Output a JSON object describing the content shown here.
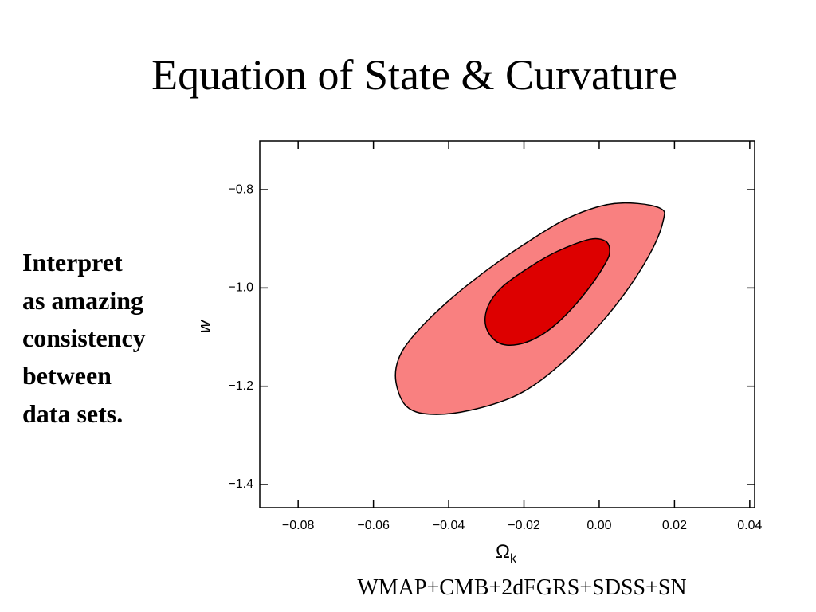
{
  "title": "Equation of State & Curvature",
  "note": [
    "Interpret",
    "as amazing",
    "consistency",
    "between",
    "data sets."
  ],
  "caption": "WMAP+CMB+2dFGRS+SDSS+SN",
  "chart_data": {
    "type": "contour",
    "xlabel": "Ω",
    "xlabel_subscript": "k",
    "ylabel": "w",
    "xlim": [
      -0.0902,
      0.0413
    ],
    "ylim": [
      -1.447,
      -0.701
    ],
    "xticks": [
      {
        "value": -0.08,
        "label": "−0.08"
      },
      {
        "value": -0.06,
        "label": "−0.06"
      },
      {
        "value": -0.04,
        "label": "−0.04"
      },
      {
        "value": -0.02,
        "label": "−0.02"
      },
      {
        "value": 0,
        "label": "0.00"
      },
      0.02,
      0.04
    ],
    "yticks": [
      {
        "value": -0.8,
        "label": "−0.8"
      },
      {
        "value": -1.0,
        "label": "−1.0"
      },
      {
        "value": -1.2,
        "label": "−1.2"
      },
      {
        "value": -1.4,
        "label": "−1.4"
      }
    ],
    "series": [
      {
        "color": "#f98080",
        "x": [
          0.0165,
          0.0171,
          0.0144,
          0.008,
          -0.0004,
          -0.011,
          -0.0216,
          -0.0343,
          -0.0449,
          -0.0512,
          -0.054,
          -0.0533,
          -0.0491,
          -0.0406,
          -0.0301,
          -0.0195,
          -0.0089,
          0.0017,
          0.0102
        ],
        "y": [
          -0.839,
          -0.86,
          -0.917,
          -0.998,
          -1.079,
          -1.16,
          -1.217,
          -1.249,
          -1.257,
          -1.241,
          -1.192,
          -1.144,
          -1.095,
          -1.03,
          -0.965,
          -0.909,
          -0.86,
          -0.831,
          -0.828
        ]
      },
      {
        "color": "#dd0000",
        "x": [
          0.0028,
          0.0017,
          -0.0025,
          -0.0089,
          -0.0152,
          -0.0216,
          -0.0269,
          -0.0301,
          -0.0296,
          -0.0258,
          -0.0184,
          -0.011,
          -0.0025,
          0.0017
        ],
        "y": [
          -0.925,
          -0.949,
          -0.998,
          -1.055,
          -1.095,
          -1.115,
          -1.111,
          -1.079,
          -1.038,
          -0.998,
          -0.957,
          -0.925,
          -0.901,
          -0.905
        ]
      }
    ]
  }
}
